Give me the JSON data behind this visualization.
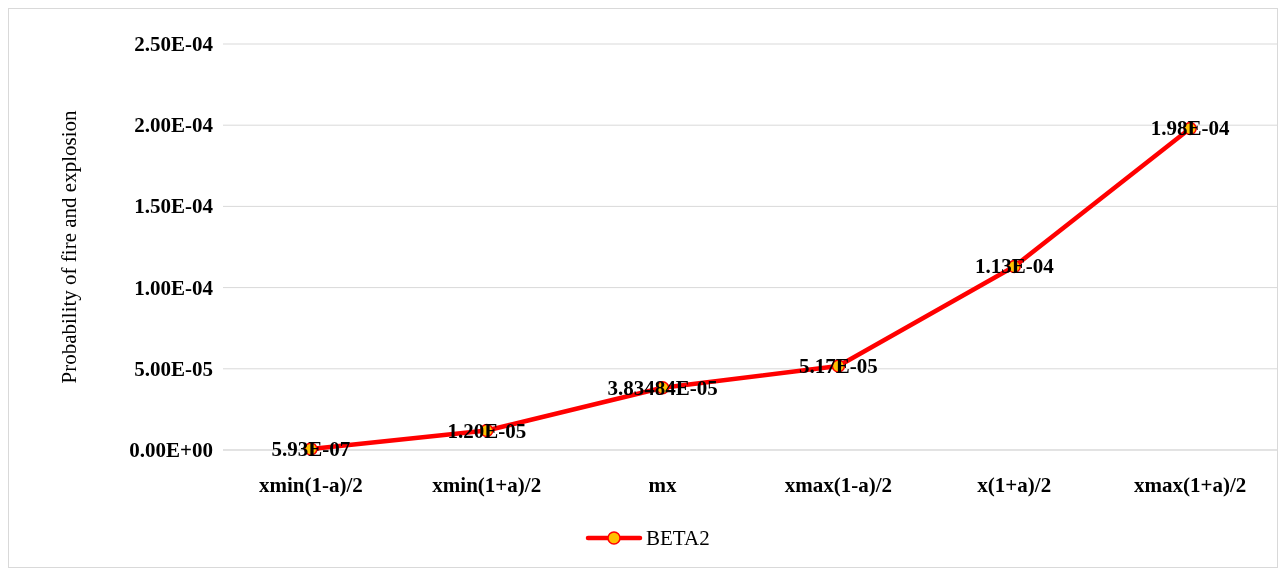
{
  "chart_data": {
    "type": "line",
    "ylabel": "Probability of fire and explosion",
    "categories": [
      "xmin(1-a)/2",
      "xmin(1+a)/2",
      "mx",
      "xmax(1-a)/2",
      "x(1+a)/2",
      "xmax(1+a)/2"
    ],
    "series": [
      {
        "name": "BETA2",
        "color": "#ff0000",
        "values": [
          5.93e-07,
          1.2e-05,
          3.83484e-05,
          5.17e-05,
          0.000113,
          0.000198
        ],
        "value_labels": [
          "5.93E-07",
          "1.20E-05",
          "3.83484E-05",
          "5.17E-05",
          "1.13E-04",
          "1.98E-04"
        ]
      }
    ],
    "ylim": [
      0,
      0.00025
    ],
    "yticks": [
      {
        "value": 0,
        "label": "0.00E+00"
      },
      {
        "value": 5e-05,
        "label": "5.00E-05"
      },
      {
        "value": 0.0001,
        "label": "1.00E-04"
      },
      {
        "value": 0.00015,
        "label": "1.50E-04"
      },
      {
        "value": 0.0002,
        "label": "2.00E-04"
      },
      {
        "value": 0.00025,
        "label": "2.50E-04"
      }
    ],
    "grid": "y",
    "legend": "bottom",
    "marker": "circle",
    "line_style": "solid"
  }
}
